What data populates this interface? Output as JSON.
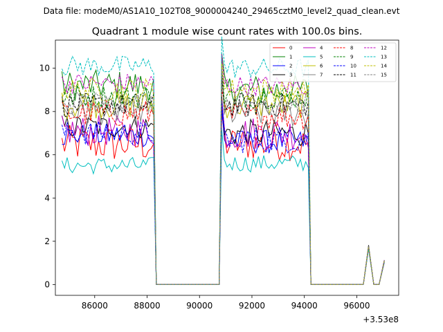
{
  "suptitle": "Data file: modeM0/AS1A10_102T08_9000004240_29465cztM0_level2_quad_clean.evt",
  "chart_data": {
    "type": "line",
    "title": "Quadrant 1 module wise count rates with 100.0s bins.",
    "xlabel": "",
    "ylabel": "",
    "x_offset_label": "+3.53e8",
    "xlim": [
      84500,
      97600
    ],
    "ylim": [
      -0.5,
      11.3
    ],
    "x_ticks": [
      86000,
      88000,
      90000,
      92000,
      94000,
      96000
    ],
    "x_tick_labels": [
      "86000",
      "88000",
      "90000",
      "92000",
      "94000",
      "96000"
    ],
    "y_ticks": [
      0,
      2,
      4,
      6,
      8,
      10
    ],
    "y_tick_labels": [
      "0",
      "2",
      "4",
      "6",
      "8",
      "10"
    ],
    "legend_location": "upper right",
    "legend_columns": 4,
    "segments": [
      {
        "start": 84750,
        "end": 88250,
        "step": 100
      },
      {
        "start": 90850,
        "end": 94150,
        "step": 100
      }
    ],
    "gap_x": [
      88350,
      88550,
      89000,
      89500,
      90000,
      90500,
      90750
    ],
    "tail_x": [
      94250,
      94500,
      95000,
      95500,
      96000,
      96250,
      96450,
      96650,
      96850,
      97050
    ],
    "tail_y": [
      0,
      0,
      0,
      0,
      0,
      0,
      1.75,
      0,
      0,
      1.1
    ],
    "series": [
      {
        "name": "0",
        "color": "#ff0000",
        "dashed": false,
        "base1": 6.5,
        "noise1": 0.55,
        "base2": 6.5,
        "noise2": 0.5
      },
      {
        "name": "1",
        "color": "#008000",
        "dashed": false,
        "base1": 9.2,
        "noise1": 0.45,
        "base2": 9.0,
        "noise2": 0.45
      },
      {
        "name": "2",
        "color": "#0000ff",
        "dashed": false,
        "base1": 6.9,
        "noise1": 0.35,
        "base2": 6.6,
        "noise2": 0.35
      },
      {
        "name": "3",
        "color": "#000000",
        "dashed": false,
        "base1": 7.3,
        "noise1": 0.35,
        "base2": 7.0,
        "noise2": 0.4
      },
      {
        "name": "4",
        "color": "#bf00bf",
        "dashed": false,
        "base1": 7.1,
        "noise1": 0.45,
        "base2": 7.0,
        "noise2": 0.5
      },
      {
        "name": "5",
        "color": "#00bfbf",
        "dashed": false,
        "base1": 5.5,
        "noise1": 0.25,
        "base2": 5.6,
        "noise2": 0.25
      },
      {
        "name": "6",
        "color": "#bfbf00",
        "dashed": false,
        "base1": 8.3,
        "noise1": 0.4,
        "base2": 8.3,
        "noise2": 0.4
      },
      {
        "name": "7",
        "color": "#808080",
        "dashed": false,
        "base1": 8.0,
        "noise1": 0.4,
        "base2": 7.9,
        "noise2": 0.4
      },
      {
        "name": "8",
        "color": "#ff0000",
        "dashed": true,
        "base1": 7.9,
        "noise1": 0.4,
        "base2": 7.8,
        "noise2": 0.4
      },
      {
        "name": "9",
        "color": "#008000",
        "dashed": true,
        "base1": 8.7,
        "noise1": 0.35,
        "base2": 8.7,
        "noise2": 0.35
      },
      {
        "name": "10",
        "color": "#0000ff",
        "dashed": true,
        "base1": 7.0,
        "noise1": 0.35,
        "base2": 6.7,
        "noise2": 0.4
      },
      {
        "name": "11",
        "color": "#000000",
        "dashed": true,
        "base1": 8.3,
        "noise1": 0.35,
        "base2": 8.3,
        "noise2": 0.35
      },
      {
        "name": "12",
        "color": "#bf00bf",
        "dashed": true,
        "base1": 9.3,
        "noise1": 0.3,
        "base2": 9.2,
        "noise2": 0.3
      },
      {
        "name": "13",
        "color": "#00bfbf",
        "dashed": true,
        "base1": 10.1,
        "noise1": 0.3,
        "base2": 10.0,
        "noise2": 0.3
      },
      {
        "name": "14",
        "color": "#bfbf00",
        "dashed": true,
        "base1": 9.0,
        "noise1": 0.35,
        "base2": 9.0,
        "noise2": 0.35
      },
      {
        "name": "15",
        "color": "#808080",
        "dashed": true,
        "base1": 8.4,
        "noise1": 0.35,
        "base2": 8.4,
        "noise2": 0.35
      }
    ]
  }
}
